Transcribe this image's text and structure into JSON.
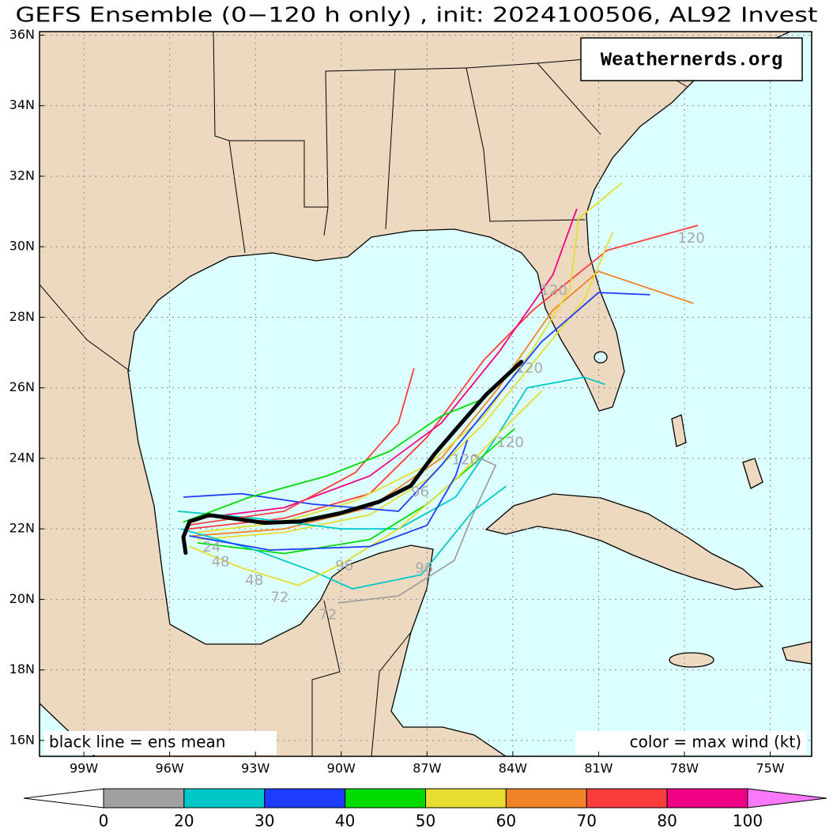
{
  "chart_data": {
    "type": "map",
    "title": "GEFS Ensemble (0−120 h only) , init: 2024100506, AL92 Invest",
    "xlim": [
      -100.55,
      -73.55
    ],
    "ylim": [
      15.55,
      36.1
    ],
    "xticks": [
      {
        "value": -99,
        "label": "99W"
      },
      {
        "value": -96,
        "label": "96W"
      },
      {
        "value": -93,
        "label": "93W"
      },
      {
        "value": -90,
        "label": "90W"
      },
      {
        "value": -87,
        "label": "87W"
      },
      {
        "value": -84,
        "label": "84W"
      },
      {
        "value": -81,
        "label": "81W"
      },
      {
        "value": -78,
        "label": "78W"
      },
      {
        "value": -75,
        "label": "75W"
      }
    ],
    "yticks": [
      {
        "value": 16,
        "label": "16N"
      },
      {
        "value": 18,
        "label": "18N"
      },
      {
        "value": 20,
        "label": "20N"
      },
      {
        "value": 22,
        "label": "22N"
      },
      {
        "value": 24,
        "label": "24N"
      },
      {
        "value": 26,
        "label": "26N"
      },
      {
        "value": 28,
        "label": "28N"
      },
      {
        "value": 30,
        "label": "30N"
      },
      {
        "value": 32,
        "label": "32N"
      },
      {
        "value": 34,
        "label": "34N"
      },
      {
        "value": 36,
        "label": "36N"
      }
    ],
    "grid": true,
    "series": [
      {
        "color": "#fa3c3c",
        "lon": [
          -95.3,
          -92,
          -89,
          -87,
          -85,
          -83.3,
          -80.7,
          -77.55
        ],
        "lat": [
          22.0,
          22.3,
          23.0,
          24.6,
          26.8,
          28.2,
          29.9,
          30.6
        ]
      },
      {
        "color": "#f08228",
        "lon": [
          -95.2,
          -92,
          -89,
          -86.5,
          -84.5,
          -82.6,
          -81,
          -77.7
        ],
        "lat": [
          21.8,
          22.0,
          22.6,
          24.0,
          26.0,
          28.2,
          29.3,
          28.4
        ]
      },
      {
        "color": "#e6dc32",
        "lon": [
          -95,
          -92,
          -89,
          -87,
          -85,
          -83.5,
          -81.5,
          -80.52
        ],
        "lat": [
          21.7,
          21.9,
          22.4,
          23.4,
          25.0,
          26.5,
          28.5,
          30.39
        ]
      },
      {
        "color": "#e6dc32",
        "lon": [
          -95,
          -92,
          -89.5,
          -87,
          -85,
          -83.3,
          -82,
          -81.7,
          -80.2
        ],
        "lat": [
          21.9,
          22.2,
          22.8,
          23.8,
          25.2,
          27.1,
          28.8,
          30.8,
          31.8
        ]
      },
      {
        "color": "#f00082",
        "lon": [
          -95,
          -92,
          -89,
          -86.5,
          -84.5,
          -82.6,
          -81.77
        ],
        "lat": [
          22.3,
          22.6,
          23.5,
          25.0,
          27.0,
          29.2,
          31.06
        ]
      },
      {
        "color": "#1e3cff",
        "lon": [
          -95.5,
          -93.5,
          -91,
          -88,
          -86.5,
          -84.5,
          -83,
          -81,
          -79.22
        ],
        "lat": [
          22.9,
          23.0,
          22.7,
          22.5,
          23.8,
          25.8,
          27.3,
          28.7,
          28.64
        ]
      },
      {
        "color": "#00c8c8",
        "lon": [
          -95.7,
          -93,
          -90,
          -88,
          -86,
          -84.5,
          -83.5,
          -81.5,
          -80.8
        ],
        "lat": [
          22.5,
          22.3,
          22.0,
          22.0,
          22.9,
          24.7,
          26.0,
          26.3,
          26.1
        ]
      },
      {
        "color": "#00dc00",
        "lon": [
          -95,
          -92,
          -89,
          -87,
          -85,
          -83.95
        ],
        "lat": [
          21.6,
          21.3,
          21.7,
          22.7,
          24.1,
          24.83
        ]
      },
      {
        "color": "#a0a0a0",
        "lon": [
          -90.1,
          -88,
          -86.05,
          -85.4,
          -84.6,
          -85.4
        ],
        "lat": [
          19.9,
          20.1,
          21.1,
          22.4,
          23.8,
          24.1
        ]
      },
      {
        "color": "#00c8c8",
        "lon": [
          -95.6,
          -93,
          -91,
          -89.6,
          -87.2,
          -85.4,
          -84.25
        ],
        "lat": [
          22.0,
          21.4,
          20.8,
          20.3,
          20.7,
          22.5,
          23.2
        ]
      },
      {
        "color": "#e6dc32",
        "lon": [
          -95.3,
          -93.5,
          -91.5,
          -90,
          -88,
          -86,
          -84.5,
          -83
        ],
        "lat": [
          21.5,
          20.9,
          20.4,
          21.0,
          22.0,
          23.4,
          24.7,
          25.9
        ]
      },
      {
        "color": "#1e3cff",
        "lon": [
          -95.3,
          -92.5,
          -89,
          -87,
          -86,
          -85.6
        ],
        "lat": [
          21.8,
          21.4,
          21.5,
          22.1,
          23.5,
          24.5
        ]
      },
      {
        "color": "#fa3c3c",
        "lon": [
          -95.4,
          -92,
          -89.5,
          -88,
          -87.46
        ],
        "lat": [
          22.1,
          22.5,
          23.6,
          25.0,
          26.54
        ]
      },
      {
        "color": "#00dc00",
        "lon": [
          -95.5,
          -93.2,
          -90.5,
          -88.3,
          -86.5,
          -85.0
        ],
        "lat": [
          22.2,
          22.9,
          23.5,
          24.2,
          25.2,
          25.7
        ]
      }
    ],
    "mean_track": {
      "color": "#000000",
      "lon": [
        -95.44,
        -95.52,
        -95.3,
        -94.61,
        -93.64,
        -92.68,
        -91.43,
        -90.05,
        -88.67,
        -87.57,
        -86.74,
        -85.91,
        -84.94,
        -83.7
      ],
      "lat": [
        21.32,
        21.77,
        22.21,
        22.39,
        22.28,
        22.17,
        22.21,
        22.44,
        22.77,
        23.22,
        24.12,
        24.9,
        25.8,
        26.74
      ]
    },
    "annotations": [
      {
        "text": "24",
        "lon": -94.53,
        "lat": 21.47
      },
      {
        "text": "48",
        "lon": -94.22,
        "lat": 21.05
      },
      {
        "text": "48",
        "lon": -93.04,
        "lat": 20.53
      },
      {
        "text": "72",
        "lon": -92.15,
        "lat": 20.04
      },
      {
        "text": "72",
        "lon": -90.47,
        "lat": 19.55
      },
      {
        "text": "96",
        "lon": -89.89,
        "lat": 20.94
      },
      {
        "text": "96",
        "lon": -87.1,
        "lat": 20.87
      },
      {
        "text": "96",
        "lon": -87.24,
        "lat": 23.04
      },
      {
        "text": "120",
        "lon": -85.66,
        "lat": 23.94
      },
      {
        "text": "120",
        "lon": -84.09,
        "lat": 24.43
      },
      {
        "text": "120",
        "lon": -83.42,
        "lat": 26.54
      },
      {
        "text": "120",
        "lon": -82.57,
        "lat": 28.75
      },
      {
        "text": "120",
        "lon": -77.76,
        "lat": 30.23
      }
    ],
    "watermark": "Weathernerds.org",
    "mean_label": "black line = ens mean",
    "color_label": "color = max wind (kt)",
    "colorbar": {
      "bounds": [
        0,
        20,
        30,
        40,
        50,
        60,
        70,
        80,
        100
      ],
      "colors": [
        "#a0a0a0",
        "#00c8c8",
        "#1e3cff",
        "#00dc00",
        "#e6dc32",
        "#f08228",
        "#fa3c3c",
        "#f00082"
      ],
      "under_color": "#ffffff",
      "over_color": "#fa78fa"
    }
  }
}
